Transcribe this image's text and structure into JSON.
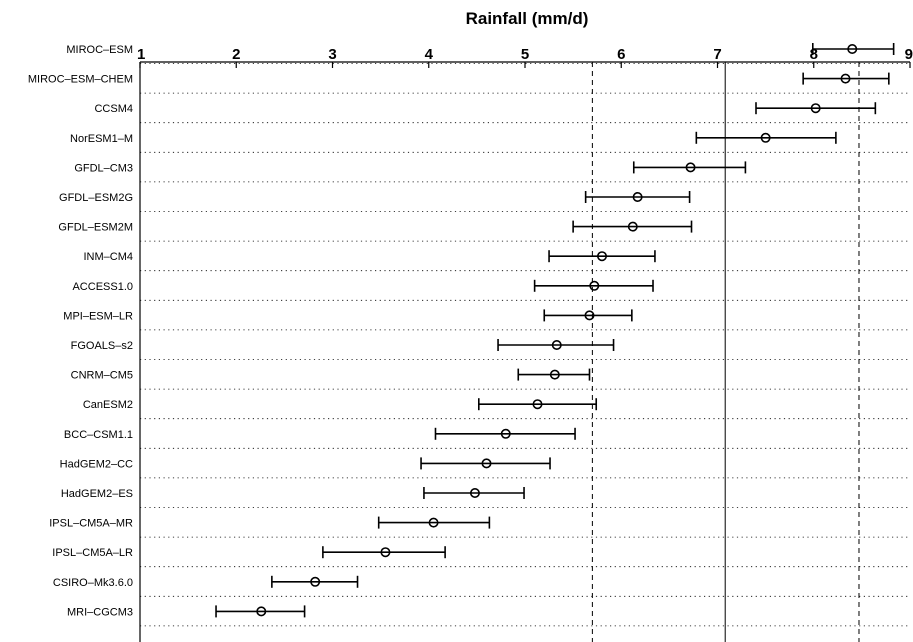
{
  "chart_data": {
    "type": "scatter",
    "title": "Rainfall (mm/d)",
    "xlabel": "",
    "ylabel": "",
    "xlim": [
      1,
      9
    ],
    "xticks": [
      "1",
      "2",
      "3",
      "4",
      "5",
      "6",
      "7",
      "8",
      "9"
    ],
    "grid": "horizontal-dotted",
    "reference_lines": [
      {
        "x": 5.7,
        "style": "dashed"
      },
      {
        "x": 7.08,
        "style": "solid"
      },
      {
        "x": 8.47,
        "style": "dashed"
      }
    ],
    "series": [
      {
        "categories": [
          "MIROC–ESM",
          "MIROC–ESM–CHEM",
          "CCSM4",
          "NorESM1–M",
          "GFDL–CM3",
          "GFDL–ESM2G",
          "GFDL–ESM2M",
          "INM–CM4",
          "ACCESS1.0",
          "MPI–ESM–LR",
          "FGOALS–s2",
          "CNRM–CM5",
          "CanESM2",
          "BCC–CSM1.1",
          "HadGEM2–CC",
          "HadGEM2–ES",
          "IPSL–CM5A–MR",
          "IPSL–CM5A–LR",
          "CSIRO–Mk3.6.0",
          "MRI–CGCM3"
        ],
        "values": [
          8.4,
          8.33,
          8.02,
          7.5,
          6.72,
          6.17,
          6.12,
          5.8,
          5.72,
          5.67,
          5.33,
          5.31,
          5.13,
          4.8,
          4.6,
          4.48,
          4.05,
          3.55,
          2.82,
          2.26
        ],
        "lower": [
          7.99,
          7.89,
          7.4,
          6.78,
          6.13,
          5.63,
          5.5,
          5.25,
          5.1,
          5.2,
          4.72,
          4.93,
          4.52,
          4.07,
          3.92,
          3.95,
          3.48,
          2.9,
          2.37,
          1.79
        ],
        "upper": [
          8.83,
          8.78,
          8.64,
          8.23,
          7.29,
          6.71,
          6.73,
          6.35,
          6.33,
          6.11,
          5.92,
          5.67,
          5.74,
          5.52,
          5.26,
          4.99,
          4.63,
          4.17,
          3.26,
          2.71
        ]
      }
    ]
  }
}
